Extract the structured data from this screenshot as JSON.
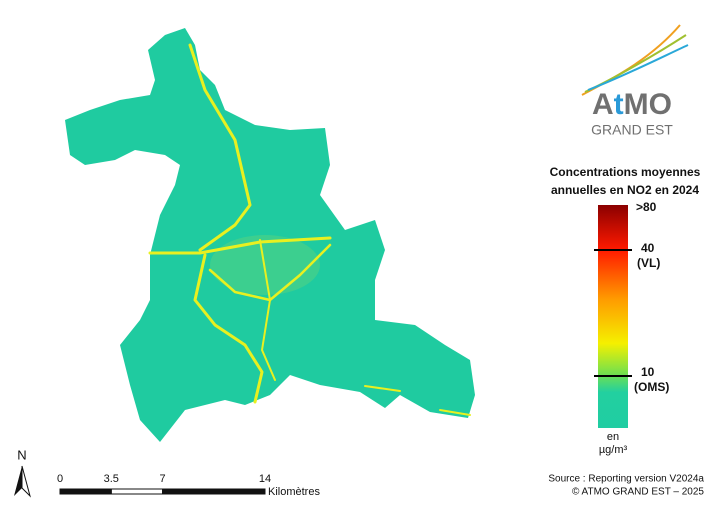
{
  "logo": {
    "name_parts": [
      "A",
      "t",
      "MO"
    ],
    "region": "GRAND EST"
  },
  "legend": {
    "title_lines": [
      "Concentrations moyennes",
      "annuelles en NO2 en 2024"
    ],
    "labels": [
      ">80",
      "40",
      "(VL)",
      "10",
      "(OMS)"
    ],
    "unit_lines": [
      "en",
      "µg/m³"
    ]
  },
  "north": "N",
  "scale_bar": {
    "ticks": [
      0,
      3.5,
      7,
      14
    ],
    "unit": "Kilomètres"
  },
  "source_lines": [
    "Source : Reporting version V2024a",
    "© ATMO GRAND EST – 2025"
  ]
}
